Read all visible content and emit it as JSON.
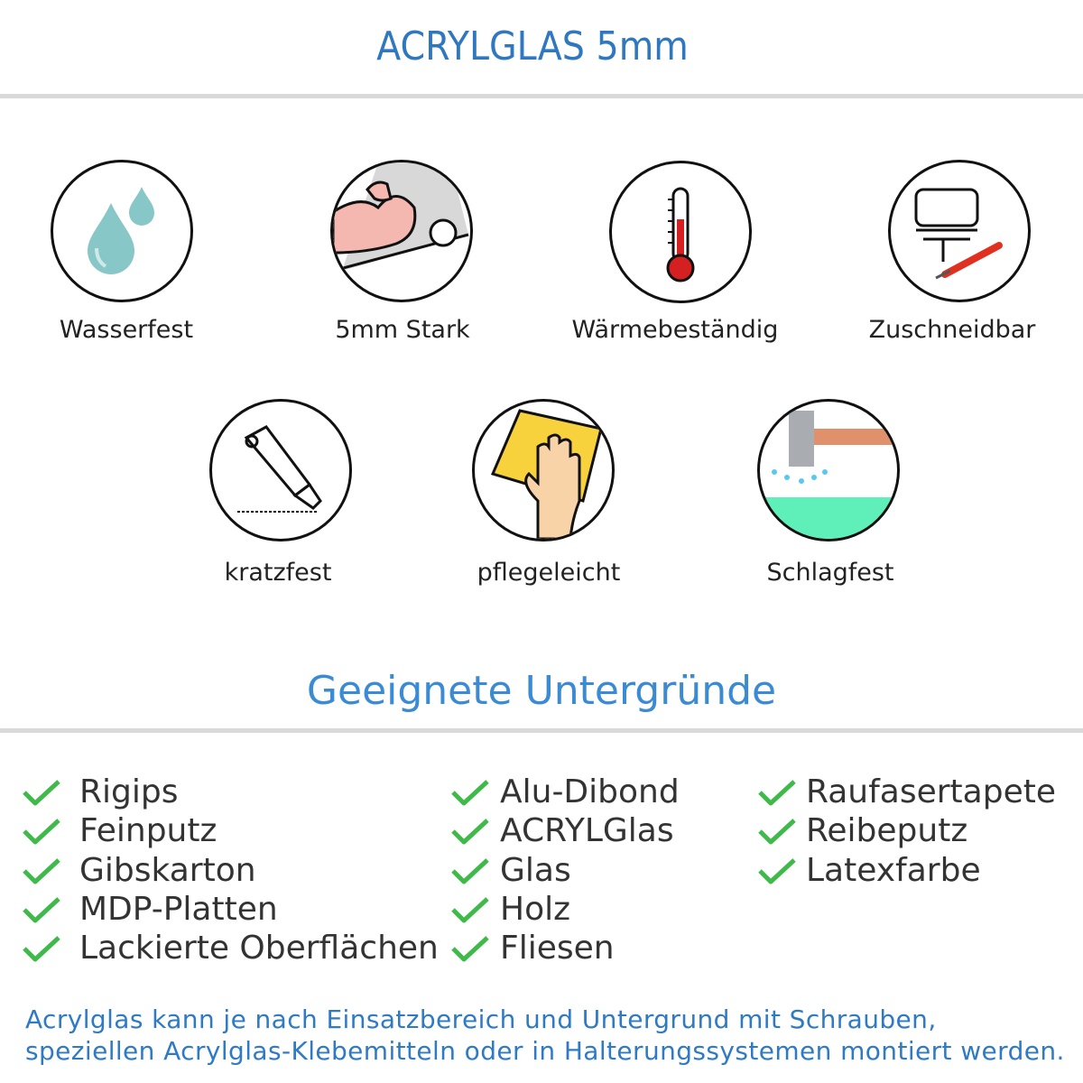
{
  "header": {
    "title": "ACRYLGLAS 5mm"
  },
  "features": [
    {
      "label": "Wasserfest",
      "icon": "water-drops-icon"
    },
    {
      "label": "5mm Stark",
      "icon": "strong-arm-icon"
    },
    {
      "label": "Wärmebeständig",
      "icon": "thermometer-icon"
    },
    {
      "label": "Zuschneidbar",
      "icon": "jigsaw-icon"
    },
    {
      "label": "kratzfest",
      "icon": "cutter-knife-icon"
    },
    {
      "label": "pflegeleicht",
      "icon": "cleaning-hand-icon"
    },
    {
      "label": "Schlagfest",
      "icon": "hammer-icon"
    }
  ],
  "surfaces": {
    "heading": "Geeignete Untergründe",
    "columns": [
      [
        "Rigips",
        "Feinputz",
        "Gibskarton",
        "MDP-Platten",
        "Lackierte Oberflächen"
      ],
      [
        "Alu-Dibond",
        "ACRYLGlas",
        "Glas",
        "Holz",
        "Fliesen"
      ],
      [
        "Raufasertapete",
        "Reibeputz",
        "Latexfarbe"
      ]
    ]
  },
  "footer": {
    "line1": "Acrylglas kann je nach Einsatzbereich und Untergrund mit Schrauben,",
    "line2": "speziellen Acrylglas-Klebemitteln oder in Halterungssystemen montiert werden."
  },
  "colors": {
    "title": "#2f78c0",
    "heading": "#3a8ad4",
    "check": "#3fba4a",
    "footer": "#2f7ac4",
    "divider": "#d9d9d9"
  }
}
